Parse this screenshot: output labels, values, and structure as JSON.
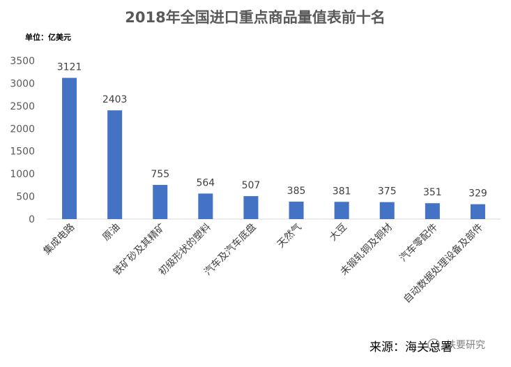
{
  "chart_data": {
    "type": "bar",
    "title": "2018年全国进口重点商品量值表前十名",
    "unit_label": "单位：亿美元",
    "categories": [
      "集成电路",
      "原油",
      "铁矿砂及其精矿",
      "初级形状的塑料",
      "汽车及汽车底盘",
      "天然气",
      "大豆",
      "未锻轧铜及铜材",
      "汽车零配件",
      "自动数据处理设备及部件"
    ],
    "values": [
      3121,
      2403,
      755,
      564,
      507,
      385,
      381,
      375,
      351,
      329
    ],
    "ylim": [
      0,
      3500
    ],
    "yticks": [
      0,
      500,
      1000,
      1500,
      2000,
      2500,
      3000,
      3500
    ],
    "grid": false,
    "bar_color": "#4472c4"
  },
  "source": "来源：海关总署",
  "watermark": "扶要研究"
}
